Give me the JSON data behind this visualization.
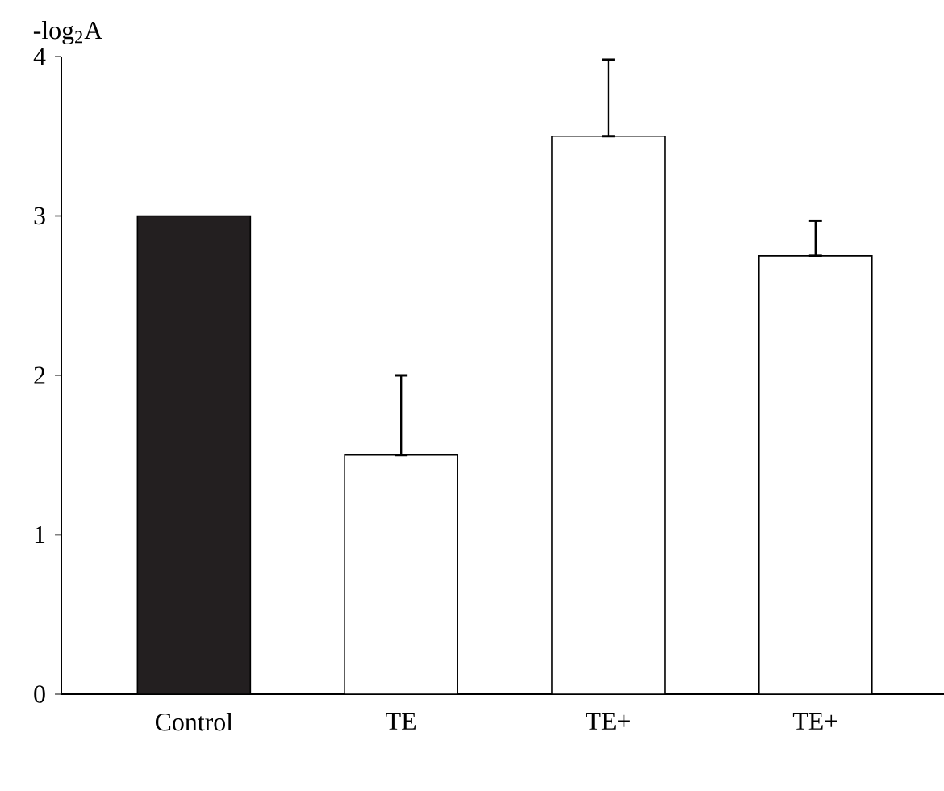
{
  "chart_data": {
    "type": "bar",
    "ylabel": "-log$_{2}$A",
    "categories": [
      "Control",
      "TE",
      "TE+",
      "TE+"
    ],
    "values": [
      3,
      1.5,
      3.5,
      2.75
    ],
    "colors": [
      "#231f20",
      "#ffffff",
      "#ffffff",
      "#ffffff"
    ],
    "errors": [
      null,
      [
        1.5,
        2.0
      ],
      [
        3.5,
        3.98
      ],
      [
        2.75,
        2.97
      ]
    ],
    "ylim": [
      0,
      4
    ],
    "yticks": [
      0,
      1,
      2,
      3,
      4
    ],
    "grid": false
  }
}
